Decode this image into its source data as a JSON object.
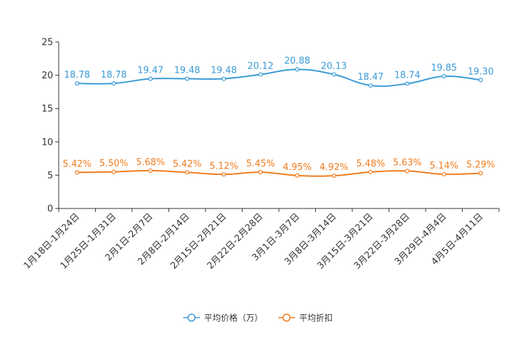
{
  "chart_data": {
    "type": "line",
    "title": "",
    "xlabel": "",
    "ylabel": "",
    "ylim": [
      0,
      25
    ],
    "yticks": [
      0,
      5,
      10,
      15,
      20,
      25
    ],
    "grid": false,
    "legend_position": "bottom-center",
    "categories": [
      "1月18日-1月24日",
      "1月25日-1月31日",
      "2月1日-2月7日",
      "2月8日-2月14日",
      "2月15日-2月21日",
      "2月22日-2月28日",
      "3月1日-3月7日",
      "3月8日-3月14日",
      "3月15日-3月21日",
      "3月22日-3月28日",
      "3月29日-4月4日",
      "4月5日-4月11日"
    ],
    "series": [
      {
        "name": "平均价格（万）",
        "color": "#3a9bd5",
        "values": [
          18.78,
          18.78,
          19.47,
          19.48,
          19.48,
          20.12,
          20.88,
          20.13,
          18.47,
          18.74,
          19.85,
          19.3
        ],
        "labels": [
          "18.78",
          "18.78",
          "19.47",
          "19.48",
          "19.48",
          "20.12",
          "20.88",
          "20.13",
          "18.47",
          "18.74",
          "19.85",
          "19.30"
        ]
      },
      {
        "name": "平均折扣",
        "color": "#f07c1e",
        "values": [
          5.42,
          5.5,
          5.68,
          5.42,
          5.12,
          5.45,
          4.95,
          4.92,
          5.48,
          5.63,
          5.14,
          5.29
        ],
        "labels": [
          "5.42%",
          "5.50%",
          "5.68%",
          "5.42%",
          "5.12%",
          "5.45%",
          "4.95%",
          "4.92%",
          "5.48%",
          "5.63%",
          "5.14%",
          "5.29%"
        ]
      }
    ]
  }
}
